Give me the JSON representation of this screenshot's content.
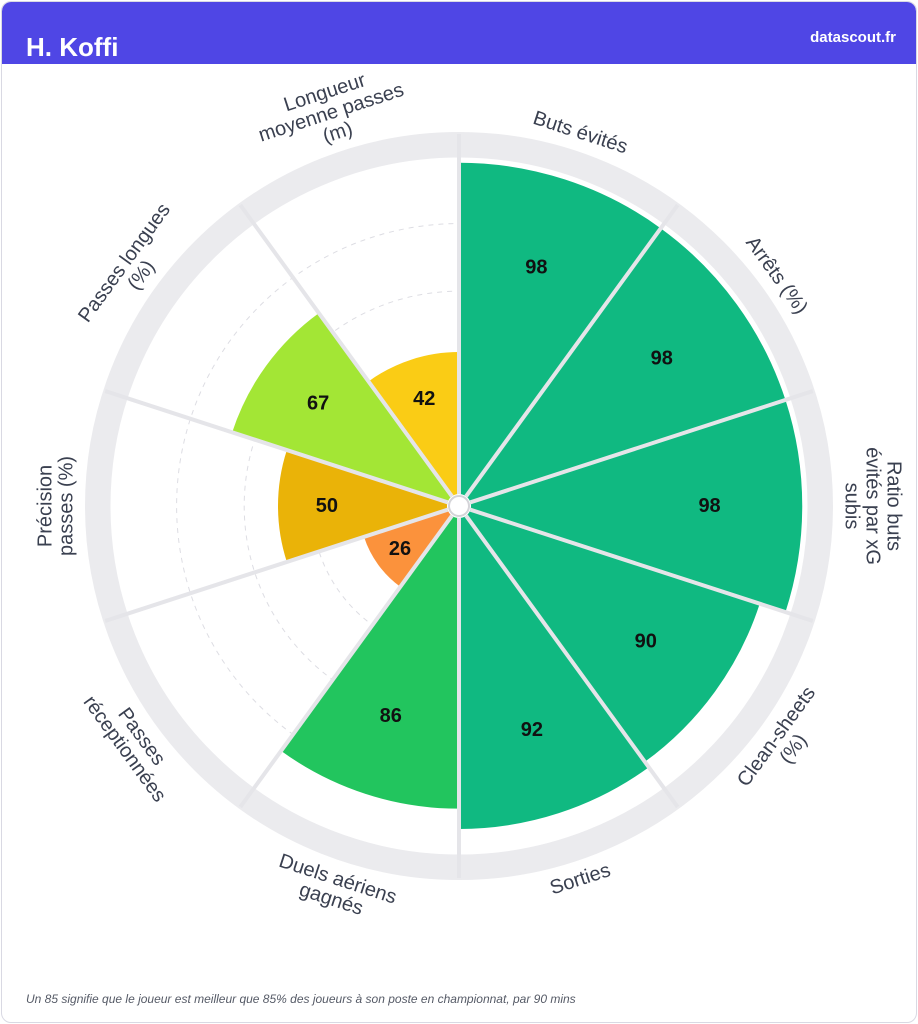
{
  "header": {
    "player_name": "H. Koffi",
    "brand": "datascout.fr"
  },
  "chart_data": {
    "type": "radial-bar",
    "title": "H. Koffi",
    "range": [
      0,
      100
    ],
    "grid": true,
    "categories": [
      {
        "label": [
          "Buts évités"
        ],
        "value": 98,
        "color": "#10b981"
      },
      {
        "label": [
          "Arrêts (%)"
        ],
        "value": 98,
        "color": "#10b981"
      },
      {
        "label": [
          "Ratio buts",
          "évités par xG",
          "subis"
        ],
        "value": 98,
        "color": "#10b981"
      },
      {
        "label": [
          "Clean-sheets",
          "(%)"
        ],
        "value": 90,
        "color": "#10b981"
      },
      {
        "label": [
          "Sorties"
        ],
        "value": 92,
        "color": "#10b981"
      },
      {
        "label": [
          "Duels aériens",
          "gagnés"
        ],
        "value": 86,
        "color": "#22c55e"
      },
      {
        "label": [
          "Passes",
          "réceptionnées"
        ],
        "value": 26,
        "color": "#fb923c"
      },
      {
        "label": [
          "Précision",
          "passes (%)"
        ],
        "value": 50,
        "color": "#eab308"
      },
      {
        "label": [
          "Passes longues",
          "(%)"
        ],
        "value": 67,
        "color": "#a3e635"
      },
      {
        "label": [
          "Longueur",
          "moyenne passes",
          "(m)"
        ],
        "value": 42,
        "color": "#facc15"
      }
    ]
  },
  "footnote": "Un 85 signifie que le joueur est meilleur que 85% des joueurs à son poste en championnat, par 90 mins"
}
